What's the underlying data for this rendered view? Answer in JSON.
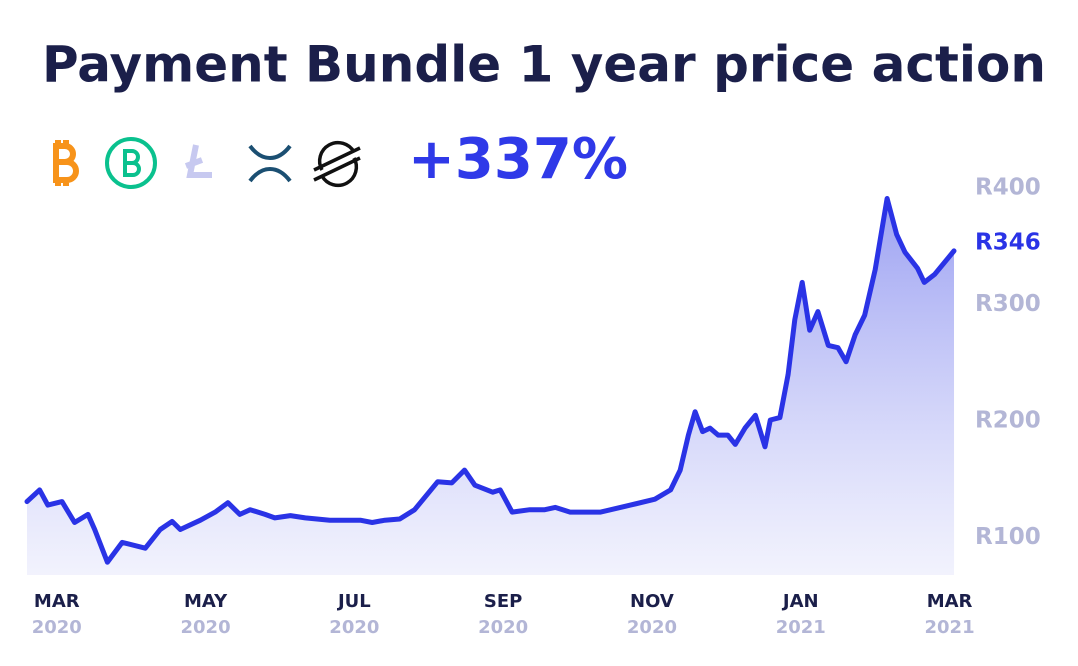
{
  "chart_data": {
    "type": "area",
    "title": "Payment Bundle 1 year price action",
    "change": {
      "value": 337,
      "label": "+337%"
    },
    "current": {
      "value": 346,
      "label": "R346"
    },
    "xlim": [
      -0.4,
      12.1
    ],
    "xticks": [
      {
        "value": 0,
        "label": "MAR",
        "year": "2020"
      },
      {
        "value": 2,
        "label": "MAY",
        "year": "2020"
      },
      {
        "value": 4,
        "label": "JUL",
        "year": "2020"
      },
      {
        "value": 6,
        "label": "SEP",
        "year": "2020"
      },
      {
        "value": 8,
        "label": "NOV",
        "year": "2020"
      },
      {
        "value": 10,
        "label": "JAN",
        "year": "2021"
      },
      {
        "value": 12,
        "label": "MAR",
        "year": "2021"
      }
    ],
    "ylim": [
      68,
      400
    ],
    "yticks": [
      {
        "value": 100,
        "label": "R100"
      },
      {
        "value": 200,
        "label": "R200"
      },
      {
        "value": 300,
        "label": "R300"
      },
      {
        "value": 400,
        "label": "R400"
      }
    ],
    "x": [
      -0.4,
      -0.23,
      -0.12,
      0.07,
      0.24,
      0.42,
      0.51,
      0.68,
      0.88,
      1.19,
      1.39,
      1.55,
      1.66,
      1.93,
      2.13,
      2.3,
      2.46,
      2.6,
      2.8,
      2.93,
      3.14,
      3.34,
      3.67,
      4.08,
      4.24,
      4.41,
      4.61,
      4.81,
      5.12,
      5.31,
      5.48,
      5.62,
      5.86,
      5.96,
      6.12,
      6.36,
      6.56,
      6.7,
      6.9,
      7.31,
      7.71,
      8.04,
      8.25,
      8.38,
      8.49,
      8.58,
      8.68,
      8.78,
      8.89,
      9.02,
      9.12,
      9.25,
      9.39,
      9.52,
      9.59,
      9.72,
      9.83,
      9.92,
      10.02,
      10.12,
      10.23,
      10.37,
      10.5,
      10.61,
      10.73,
      10.86,
      11.0,
      11.16,
      11.29,
      11.4,
      11.57,
      11.66,
      11.8,
      12.06
    ],
    "series": [
      {
        "color": "#2a33e6",
        "values": [
          131,
          141,
          128,
          131,
          113,
          120,
          107,
          79,
          96,
          91,
          107,
          114,
          107,
          115,
          122,
          130,
          120,
          124,
          120,
          117,
          119,
          117,
          115,
          115,
          113,
          115,
          116,
          124,
          148,
          147,
          158,
          145,
          139,
          141,
          122,
          124,
          124,
          126,
          122,
          122,
          128,
          133,
          141,
          158,
          188,
          208,
          191,
          194,
          188,
          188,
          180,
          194,
          205,
          178,
          201,
          203,
          240,
          287,
          319,
          278,
          294,
          265,
          263,
          251,
          274,
          291,
          330,
          391,
          360,
          345,
          331,
          319,
          326,
          346
        ]
      }
    ]
  }
}
